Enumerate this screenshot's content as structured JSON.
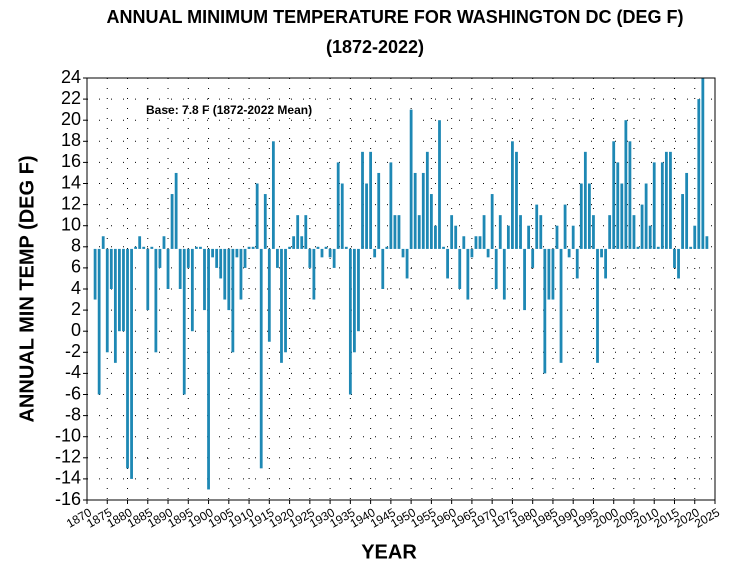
{
  "chart_data": {
    "type": "bar",
    "title": "ANNUAL MINIMUM TEMPERATURE FOR WASHINGTON DC (DEG F)",
    "subtitle": "(1872-2022)",
    "xlabel": "YEAR",
    "ylabel": "ANNUAL MIN TEMP (DEG F)",
    "annotation": "Base: 7.8 F (1872-2022 Mean)",
    "base": 7.8,
    "color": "#1e88b4",
    "grid": true,
    "x": [
      1872,
      1873,
      1874,
      1875,
      1876,
      1877,
      1878,
      1879,
      1880,
      1881,
      1882,
      1883,
      1884,
      1885,
      1886,
      1887,
      1888,
      1889,
      1890,
      1891,
      1892,
      1893,
      1894,
      1895,
      1896,
      1897,
      1898,
      1899,
      1900,
      1901,
      1902,
      1903,
      1904,
      1905,
      1906,
      1907,
      1908,
      1909,
      1910,
      1911,
      1912,
      1913,
      1914,
      1915,
      1916,
      1917,
      1918,
      1919,
      1920,
      1921,
      1922,
      1923,
      1924,
      1925,
      1926,
      1927,
      1928,
      1929,
      1930,
      1931,
      1932,
      1933,
      1934,
      1935,
      1936,
      1937,
      1938,
      1939,
      1940,
      1941,
      1942,
      1943,
      1944,
      1945,
      1946,
      1947,
      1948,
      1949,
      1950,
      1951,
      1952,
      1953,
      1954,
      1955,
      1956,
      1957,
      1958,
      1959,
      1960,
      1961,
      1962,
      1963,
      1964,
      1965,
      1966,
      1967,
      1968,
      1969,
      1970,
      1971,
      1972,
      1973,
      1974,
      1975,
      1976,
      1977,
      1978,
      1979,
      1980,
      1981,
      1982,
      1983,
      1984,
      1985,
      1986,
      1987,
      1988,
      1989,
      1990,
      1991,
      1992,
      1993,
      1994,
      1995,
      1996,
      1997,
      1998,
      1999,
      2000,
      2001,
      2002,
      2003,
      2004,
      2005,
      2006,
      2007,
      2008,
      2009,
      2010,
      2011,
      2012,
      2013,
      2014,
      2015,
      2016,
      2017,
      2018,
      2019,
      2020,
      2021,
      2022,
      2023
    ],
    "values": [
      3,
      -6,
      9,
      -2,
      4,
      -3,
      0,
      0,
      -13,
      -14,
      8,
      9,
      8,
      2,
      8,
      -2,
      6,
      9,
      4,
      13,
      15,
      4,
      -6,
      6,
      0,
      8,
      8,
      2,
      -15,
      7,
      6,
      5,
      3,
      2,
      -2,
      7,
      3,
      6,
      8,
      8,
      14,
      -13,
      13,
      -1,
      18,
      6,
      -3,
      -2,
      8,
      9,
      11,
      9,
      11,
      6,
      3,
      8,
      7,
      8,
      7,
      6,
      16,
      14,
      8,
      -6,
      -2,
      0,
      17,
      14,
      17,
      7,
      15,
      4,
      8,
      16,
      11,
      11,
      7,
      5,
      21,
      15,
      11,
      15,
      17,
      13,
      10,
      20,
      8,
      5,
      11,
      10,
      4,
      9,
      3,
      7,
      9,
      9,
      11,
      7,
      13,
      4,
      11,
      3,
      10,
      18,
      17,
      11,
      2,
      10,
      6,
      12,
      11,
      -4,
      3,
      3,
      10,
      -3,
      12,
      7,
      10,
      5,
      14,
      17,
      14,
      11,
      -3,
      7,
      5,
      11,
      18,
      16,
      14,
      20,
      18,
      11,
      8,
      12,
      14,
      10,
      16,
      8,
      16,
      17,
      17,
      6,
      5,
      13,
      15,
      8,
      10,
      22,
      24,
      9
    ],
    "xlim": [
      1870,
      2025
    ],
    "xticks": [
      1870,
      1875,
      1880,
      1885,
      1890,
      1895,
      1900,
      1905,
      1910,
      1915,
      1920,
      1925,
      1930,
      1935,
      1940,
      1945,
      1950,
      1955,
      1960,
      1965,
      1970,
      1975,
      1980,
      1985,
      1990,
      1995,
      2000,
      2005,
      2010,
      2015,
      2020,
      2025
    ],
    "ylim": [
      -16,
      24
    ],
    "yticks": [
      -16,
      -14,
      -12,
      -10,
      -8,
      -6,
      -4,
      -2,
      0,
      2,
      4,
      6,
      8,
      10,
      12,
      14,
      16,
      18,
      20,
      22,
      24
    ]
  }
}
